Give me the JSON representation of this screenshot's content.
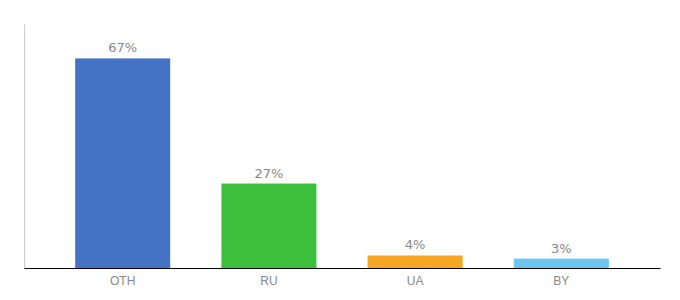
{
  "chart_data": {
    "type": "bar",
    "categories": [
      "OTH",
      "RU",
      "UA",
      "BY"
    ],
    "values": [
      67,
      27,
      4,
      3
    ],
    "value_labels": [
      "67%",
      "27%",
      "4%",
      "3%"
    ],
    "data_labels": true,
    "colors": [
      "#4472c4",
      "#3dbf3d",
      "#f5a623",
      "#6ec6f0"
    ],
    "ylim": [
      0,
      78
    ],
    "tick_labels": "x"
  }
}
